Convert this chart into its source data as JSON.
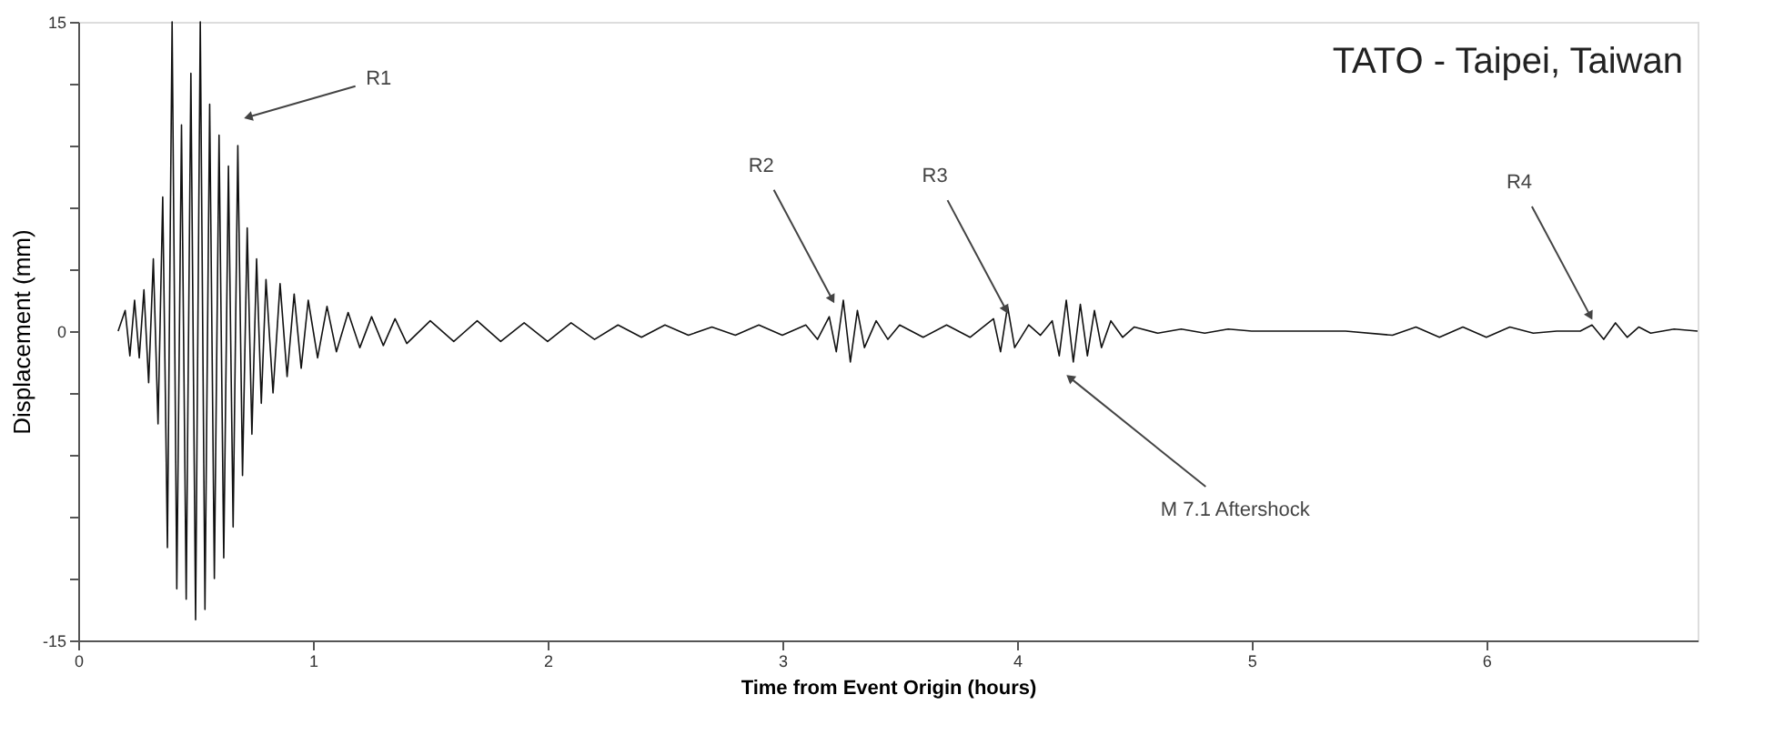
{
  "chart_data": {
    "type": "line",
    "title": "TATO - Taipei, Taiwan",
    "xlabel": "Time from Event Origin (hours)",
    "ylabel": "Displacement (mm)",
    "xlim": [
      0,
      6.9
    ],
    "xticks": [
      0,
      1,
      2,
      3,
      4,
      5,
      6
    ],
    "ylim": [
      -15,
      15
    ],
    "yticks": [
      -15,
      {
        "value": -12,
        "label": null
      },
      {
        "value": -9,
        "label": null
      },
      {
        "value": -6,
        "label": null
      },
      {
        "value": -3,
        "label": null
      },
      0,
      {
        "value": 3,
        "label": null
      },
      {
        "value": 6,
        "label": null
      },
      {
        "value": 9,
        "label": null
      },
      {
        "value": 12,
        "label": null
      },
      15
    ],
    "grid": false,
    "marker": "none",
    "line_style": "solid",
    "annotations": [
      {
        "text": "R1",
        "x": 0.73,
        "y": 10.4
      },
      {
        "text": "R2",
        "x": 3.21,
        "y": 1.6
      },
      {
        "text": "R3",
        "x": 3.95,
        "y": 1.1
      },
      {
        "text": "R4",
        "x": 6.44,
        "y": 0.8
      },
      {
        "text": "M 7.1 Aftershock",
        "x": 4.23,
        "y": -2.3
      }
    ],
    "series": [
      {
        "color": "#111111",
        "x": [
          0.17,
          0.2,
          0.22,
          0.24,
          0.26,
          0.28,
          0.3,
          0.32,
          0.34,
          0.36,
          0.38,
          0.4,
          0.42,
          0.44,
          0.46,
          0.48,
          0.5,
          0.52,
          0.54,
          0.56,
          0.58,
          0.6,
          0.62,
          0.64,
          0.66,
          0.68,
          0.7,
          0.72,
          0.74,
          0.76,
          0.78,
          0.8,
          0.83,
          0.86,
          0.89,
          0.92,
          0.95,
          0.98,
          1.02,
          1.06,
          1.1,
          1.15,
          1.2,
          1.25,
          1.3,
          1.35,
          1.4,
          1.5,
          1.6,
          1.7,
          1.8,
          1.9,
          2.0,
          2.1,
          2.2,
          2.3,
          2.4,
          2.5,
          2.6,
          2.7,
          2.8,
          2.9,
          3.0,
          3.1,
          3.15,
          3.2,
          3.23,
          3.26,
          3.29,
          3.32,
          3.35,
          3.4,
          3.45,
          3.5,
          3.6,
          3.7,
          3.8,
          3.9,
          3.93,
          3.96,
          3.99,
          4.05,
          4.1,
          4.15,
          4.18,
          4.21,
          4.24,
          4.27,
          4.3,
          4.33,
          4.36,
          4.4,
          4.45,
          4.5,
          4.6,
          4.7,
          4.8,
          4.9,
          5.0,
          5.2,
          5.4,
          5.6,
          5.7,
          5.8,
          5.9,
          6.0,
          6.1,
          6.2,
          6.3,
          6.4,
          6.45,
          6.5,
          6.55,
          6.6,
          6.65,
          6.7,
          6.8,
          6.9
        ],
        "values": [
          0,
          1.0,
          -1.2,
          1.5,
          -1.3,
          2.0,
          -2.5,
          3.5,
          -4.5,
          6.5,
          -10.5,
          15,
          -12.5,
          10,
          -13,
          12.5,
          -14,
          15,
          -13.5,
          11,
          -12,
          9.5,
          -11,
          8,
          -9.5,
          9,
          -7,
          5,
          -5,
          3.5,
          -3.5,
          2.5,
          -3,
          2.3,
          -2.2,
          1.8,
          -1.8,
          1.5,
          -1.3,
          1.2,
          -1.0,
          0.9,
          -0.8,
          0.7,
          -0.7,
          0.6,
          -0.6,
          0.5,
          -0.5,
          0.5,
          -0.5,
          0.4,
          -0.5,
          0.4,
          -0.4,
          0.3,
          -0.3,
          0.3,
          -0.2,
          0.2,
          -0.2,
          0.3,
          -0.2,
          0.3,
          -0.4,
          0.7,
          -1.0,
          1.5,
          -1.5,
          1.0,
          -0.8,
          0.5,
          -0.4,
          0.3,
          -0.3,
          0.3,
          -0.3,
          0.6,
          -1.0,
          1.2,
          -0.8,
          0.3,
          -0.2,
          0.5,
          -1.2,
          1.5,
          -1.5,
          1.3,
          -1.2,
          1.0,
          -0.8,
          0.5,
          -0.3,
          0.2,
          -0.1,
          0.1,
          -0.1,
          0.1,
          0,
          0,
          0,
          -0.2,
          0.2,
          -0.3,
          0.2,
          -0.3,
          0.2,
          -0.1,
          0,
          0,
          0.3,
          -0.4,
          0.4,
          -0.3,
          0.2,
          -0.1,
          0.1,
          0
        ]
      }
    ]
  }
}
